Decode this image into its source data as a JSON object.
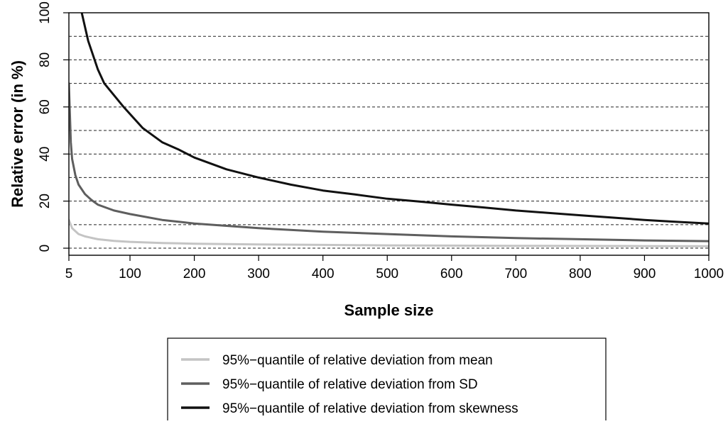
{
  "chart_data": {
    "type": "line",
    "title": "",
    "xlabel": "Sample size",
    "ylabel": "Relative error (in %)",
    "xlim": [
      5,
      1000
    ],
    "ylim": [
      -3,
      100
    ],
    "x_ticks": [
      5,
      100,
      200,
      300,
      400,
      500,
      600,
      700,
      800,
      900,
      1000
    ],
    "y_ticks": [
      0,
      20,
      40,
      60,
      80,
      100
    ],
    "grid": "horizontal dashed lines every 10",
    "grid_lines": [
      0,
      10,
      20,
      30,
      40,
      50,
      60,
      70,
      80,
      90,
      100
    ],
    "legend_position": "bottom",
    "series": [
      {
        "name": "95%−quantile of relative deviation from mean",
        "color": "#c4c4c4",
        "x": [
          5,
          10,
          20,
          30,
          50,
          75,
          100,
          150,
          200,
          300,
          400,
          500,
          600,
          700,
          800,
          900,
          1000
        ],
        "values": [
          12,
          8.5,
          6,
          5,
          3.8,
          3.1,
          2.7,
          2.2,
          1.9,
          1.6,
          1.4,
          1.2,
          1.1,
          1.0,
          0.95,
          0.9,
          0.85
        ]
      },
      {
        "name": "95%−quantile of relative deviation from SD",
        "color": "#5e5e5e",
        "x": [
          5,
          8,
          10,
          15,
          20,
          30,
          40,
          50,
          75,
          100,
          150,
          200,
          300,
          400,
          500,
          600,
          700,
          800,
          900,
          1000
        ],
        "values": [
          70,
          45,
          38,
          31,
          27,
          23,
          20.5,
          18.5,
          16,
          14.5,
          12,
          10.5,
          8.5,
          7,
          6,
          5,
          4.3,
          3.8,
          3.3,
          3.0
        ]
      },
      {
        "name": "95%−quantile of relative deviation from skewness",
        "color": "#111111",
        "x": [
          25,
          35,
          50,
          60,
          75,
          90,
          100,
          120,
          150,
          175,
          200,
          250,
          300,
          350,
          400,
          450,
          500,
          550,
          600,
          650,
          700,
          750,
          800,
          850,
          900,
          950,
          1000
        ],
        "values": [
          100,
          88,
          76,
          70,
          65,
          60,
          57,
          51,
          45,
          42,
          38.5,
          33.5,
          30,
          27,
          24.5,
          22.8,
          21,
          19.8,
          18.5,
          17.3,
          16,
          15,
          14,
          13,
          12,
          11.2,
          10.5
        ]
      }
    ]
  }
}
